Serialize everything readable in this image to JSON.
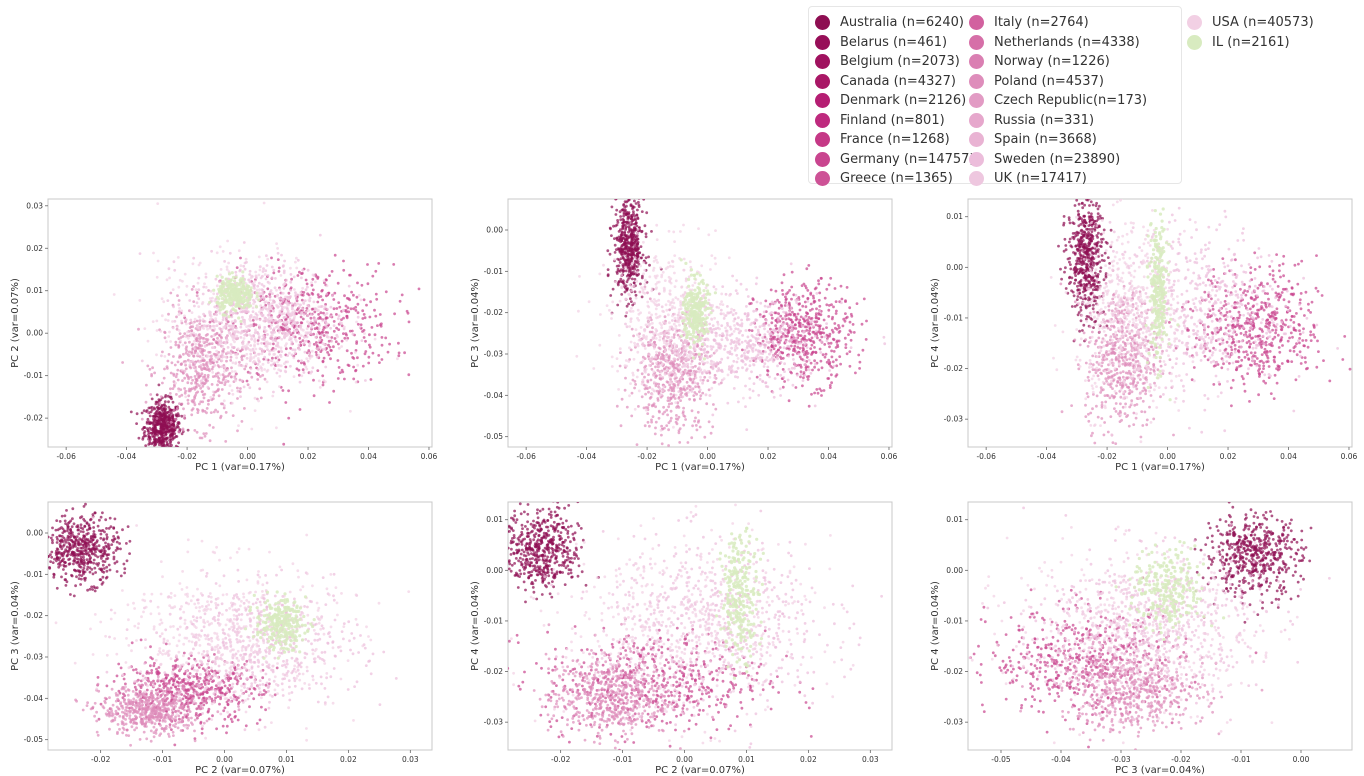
{
  "legend": {
    "items": [
      {
        "label": "Australia (n=6240)",
        "color": "#8e0e52"
      },
      {
        "label": "Belarus (n=461)",
        "color": "#970f58"
      },
      {
        "label": "Belgium (n=2073)",
        "color": "#a0125f"
      },
      {
        "label": "Canada (n=4327)",
        "color": "#a91766"
      },
      {
        "label": "Denmark (n=2126)",
        "color": "#b51e73"
      },
      {
        "label": "Finland (n=801)",
        "color": "#be2a7e"
      },
      {
        "label": "France (n=1268)",
        "color": "#c53886"
      },
      {
        "label": "Germany (n=14757)",
        "color": "#c9458f"
      },
      {
        "label": "Greece (n=1365)",
        "color": "#cd5296"
      },
      {
        "label": "Italy (n=2764)",
        "color": "#d2619f"
      },
      {
        "label": "Netherlands (n=4338)",
        "color": "#d66fa8"
      },
      {
        "label": "Norway (n=1226)",
        "color": "#da7fb2"
      },
      {
        "label": "Poland (n=4537)",
        "color": "#de8dbb"
      },
      {
        "label": "Czech Republic(n=173)",
        "color": "#e29bc4"
      },
      {
        "label": "Russia (n=331)",
        "color": "#e6a7cc"
      },
      {
        "label": "Spain (n=3668)",
        "color": "#e9b3d3"
      },
      {
        "label": "Sweden (n=23890)",
        "color": "#ecbddb"
      },
      {
        "label": "UK (n=17417)",
        "color": "#eec7df"
      },
      {
        "label": "USA (n=40573)",
        "color": "#f2d0e4"
      },
      {
        "label": "IL (n=2161)",
        "color": "#d8ebc0"
      }
    ]
  },
  "chart_data": [
    {
      "type": "scatter",
      "xlabel": "PC 1 (var=0.17%)",
      "ylabel": "PC 2 (var=0.07%)",
      "xlim": [
        -0.066,
        0.061
      ],
      "ylim": [
        -0.0268,
        0.0316
      ],
      "xticks": [
        "-0.06",
        "-0.04",
        "-0.02",
        "0.00",
        "0.02",
        "0.04",
        "0.06"
      ],
      "xtick_values": [
        -0.06,
        -0.04,
        -0.02,
        0.0,
        0.02,
        0.04,
        0.06
      ],
      "yticks": [
        "-0.02",
        "-0.01",
        "0.00",
        "0.01",
        "0.02",
        "0.03"
      ],
      "ytick_values": [
        -0.02,
        -0.01,
        0.0,
        0.01,
        0.02,
        0.03
      ],
      "clusters": [
        {
          "name": "Australia (n=6240)",
          "cx": -0.028,
          "cy": -0.022,
          "sx": 0.003,
          "sy": 0.003
        },
        {
          "name": "Germany (n=14757)",
          "cx": 0.02,
          "cy": 0.002,
          "sx": 0.014,
          "sy": 0.007
        },
        {
          "name": "Poland (n=4537)",
          "cx": -0.015,
          "cy": -0.008,
          "sx": 0.007,
          "sy": 0.007
        },
        {
          "name": "Sweden (n=23890)",
          "cx": 0.005,
          "cy": 0.004,
          "sx": 0.012,
          "sy": 0.007
        },
        {
          "name": "USA (n=40573)",
          "cx": 0.0,
          "cy": 0.002,
          "sx": 0.015,
          "sy": 0.008
        },
        {
          "name": "IL (n=2161)",
          "cx": -0.004,
          "cy": 0.009,
          "sx": 0.003,
          "sy": 0.002
        }
      ]
    },
    {
      "type": "scatter",
      "xlabel": "PC 1 (var=0.17%)",
      "ylabel": "PC 3 (var=0.04%)",
      "xlim": [
        -0.066,
        0.061
      ],
      "ylim": [
        -0.0525,
        0.0075
      ],
      "xticks": [
        "-0.06",
        "-0.04",
        "-0.02",
        "0.00",
        "0.02",
        "0.04",
        "0.06"
      ],
      "xtick_values": [
        -0.06,
        -0.04,
        -0.02,
        0.0,
        0.02,
        0.04,
        0.06
      ],
      "yticks": [
        "-0.05",
        "-0.04",
        "-0.03",
        "-0.02",
        "-0.01",
        "0.00"
      ],
      "ytick_values": [
        -0.05,
        -0.04,
        -0.03,
        -0.02,
        -0.01,
        0.0
      ],
      "clusters": [
        {
          "name": "Australia (n=6240)",
          "cx": -0.026,
          "cy": -0.004,
          "sx": 0.0025,
          "sy": 0.006
        },
        {
          "name": "Germany (n=14757)",
          "cx": 0.032,
          "cy": -0.025,
          "sx": 0.008,
          "sy": 0.006
        },
        {
          "name": "Poland (n=4537)",
          "cx": -0.012,
          "cy": -0.035,
          "sx": 0.007,
          "sy": 0.007
        },
        {
          "name": "Sweden (n=23890)",
          "cx": 0.012,
          "cy": -0.028,
          "sx": 0.013,
          "sy": 0.006
        },
        {
          "name": "USA (n=40573)",
          "cx": -0.012,
          "cy": -0.022,
          "sx": 0.01,
          "sy": 0.009
        },
        {
          "name": "IL (n=2161)",
          "cx": -0.004,
          "cy": -0.02,
          "sx": 0.002,
          "sy": 0.004
        }
      ]
    },
    {
      "type": "scatter",
      "xlabel": "PC 1 (var=0.17%)",
      "ylabel": "PC 4 (var=0.04%)",
      "xlim": [
        -0.066,
        0.061
      ],
      "ylim": [
        -0.0355,
        0.0135
      ],
      "xticks": [
        "-0.06",
        "-0.04",
        "-0.02",
        "0.00",
        "0.02",
        "0.04",
        "0.06"
      ],
      "xtick_values": [
        -0.06,
        -0.04,
        -0.02,
        0.0,
        0.02,
        0.04,
        0.06
      ],
      "yticks": [
        "-0.03",
        "-0.02",
        "-0.01",
        "0.00",
        "0.01"
      ],
      "ytick_values": [
        -0.03,
        -0.02,
        -0.01,
        0.0,
        0.01
      ],
      "clusters": [
        {
          "name": "Australia (n=6240)",
          "cx": -0.027,
          "cy": 0.002,
          "sx": 0.003,
          "sy": 0.006
        },
        {
          "name": "Germany (n=14757)",
          "cx": 0.03,
          "cy": -0.012,
          "sx": 0.01,
          "sy": 0.006
        },
        {
          "name": "Poland (n=4537)",
          "cx": -0.015,
          "cy": -0.018,
          "sx": 0.006,
          "sy": 0.007
        },
        {
          "name": "Sweden (n=23890)",
          "cx": 0.01,
          "cy": -0.008,
          "sx": 0.014,
          "sy": 0.008
        },
        {
          "name": "USA (n=40573)",
          "cx": -0.012,
          "cy": -0.01,
          "sx": 0.009,
          "sy": 0.009
        },
        {
          "name": "IL (n=2161)",
          "cx": -0.003,
          "cy": -0.005,
          "sx": 0.0015,
          "sy": 0.007
        }
      ]
    },
    {
      "type": "scatter",
      "xlabel": "PC 2 (var=0.07%)",
      "ylabel": "PC 3 (var=0.04%)",
      "xlim": [
        -0.0285,
        0.0335
      ],
      "ylim": [
        -0.0525,
        0.0075
      ],
      "xticks": [
        "-0.02",
        "-0.01",
        "0.00",
        "0.01",
        "0.02",
        "0.03"
      ],
      "xtick_values": [
        -0.02,
        -0.01,
        0.0,
        0.01,
        0.02,
        0.03
      ],
      "yticks": [
        "-0.05",
        "-0.04",
        "-0.03",
        "-0.02",
        "-0.01",
        "0.00"
      ],
      "ytick_values": [
        -0.05,
        -0.04,
        -0.03,
        -0.02,
        -0.01,
        0.0
      ],
      "clusters": [
        {
          "name": "Australia (n=6240)",
          "cx": -0.023,
          "cy": -0.004,
          "sx": 0.003,
          "sy": 0.004
        },
        {
          "name": "Germany (n=14757)",
          "cx": -0.006,
          "cy": -0.038,
          "sx": 0.006,
          "sy": 0.004
        },
        {
          "name": "Poland (n=4537)",
          "cx": -0.012,
          "cy": -0.043,
          "sx": 0.004,
          "sy": 0.003
        },
        {
          "name": "Sweden (n=23890)",
          "cx": 0.006,
          "cy": -0.027,
          "sx": 0.008,
          "sy": 0.007
        },
        {
          "name": "USA (n=40573)",
          "cx": 0.0,
          "cy": -0.025,
          "sx": 0.009,
          "sy": 0.009
        },
        {
          "name": "IL (n=2161)",
          "cx": 0.009,
          "cy": -0.022,
          "sx": 0.002,
          "sy": 0.003
        }
      ]
    },
    {
      "type": "scatter",
      "xlabel": "PC 2 (var=0.07%)",
      "ylabel": "PC 4 (var=0.04%)",
      "xlim": [
        -0.0285,
        0.0335
      ],
      "ylim": [
        -0.0355,
        0.0135
      ],
      "xticks": [
        "-0.02",
        "-0.01",
        "0.00",
        "0.01",
        "0.02",
        "0.03"
      ],
      "xtick_values": [
        -0.02,
        -0.01,
        0.0,
        0.01,
        0.02,
        0.03
      ],
      "yticks": [
        "-0.03",
        "-0.02",
        "-0.01",
        "0.00",
        "0.01"
      ],
      "ytick_values": [
        -0.03,
        -0.02,
        -0.01,
        0.0,
        0.01
      ],
      "clusters": [
        {
          "name": "Australia (n=6240)",
          "cx": -0.023,
          "cy": 0.004,
          "sx": 0.003,
          "sy": 0.004
        },
        {
          "name": "Germany (n=14757)",
          "cx": -0.005,
          "cy": -0.022,
          "sx": 0.009,
          "sy": 0.005
        },
        {
          "name": "Poland (n=4537)",
          "cx": -0.012,
          "cy": -0.025,
          "sx": 0.005,
          "sy": 0.004
        },
        {
          "name": "Sweden (n=23890)",
          "cx": 0.005,
          "cy": -0.01,
          "sx": 0.009,
          "sy": 0.008
        },
        {
          "name": "USA (n=40573)",
          "cx": 0.0,
          "cy": -0.012,
          "sx": 0.01,
          "sy": 0.009
        },
        {
          "name": "IL (n=2161)",
          "cx": 0.009,
          "cy": -0.005,
          "sx": 0.0015,
          "sy": 0.006
        }
      ]
    },
    {
      "type": "scatter",
      "xlabel": "PC 3 (var=0.04%)",
      "ylabel": "PC 4 (var=0.04%)",
      "xlim": [
        -0.0555,
        0.0085
      ],
      "ylim": [
        -0.0355,
        0.0135
      ],
      "xticks": [
        "-0.05",
        "-0.04",
        "-0.03",
        "-0.02",
        "-0.01",
        "0.00"
      ],
      "xtick_values": [
        -0.05,
        -0.04,
        -0.03,
        -0.02,
        -0.01,
        0.0
      ],
      "yticks": [
        "-0.03",
        "-0.02",
        "-0.01",
        "0.00",
        "0.01"
      ],
      "ytick_values": [
        -0.03,
        -0.02,
        -0.01,
        0.0,
        0.01
      ],
      "clusters": [
        {
          "name": "Australia (n=6240)",
          "cx": -0.008,
          "cy": 0.003,
          "sx": 0.004,
          "sy": 0.004
        },
        {
          "name": "Germany (n=14757)",
          "cx": -0.036,
          "cy": -0.018,
          "sx": 0.008,
          "sy": 0.005
        },
        {
          "name": "Poland (n=4537)",
          "cx": -0.028,
          "cy": -0.024,
          "sx": 0.006,
          "sy": 0.004
        },
        {
          "name": "Sweden (n=23890)",
          "cx": -0.025,
          "cy": -0.01,
          "sx": 0.009,
          "sy": 0.007
        },
        {
          "name": "USA (n=40573)",
          "cx": -0.028,
          "cy": -0.012,
          "sx": 0.01,
          "sy": 0.008
        },
        {
          "name": "IL (n=2161)",
          "cx": -0.022,
          "cy": -0.004,
          "sx": 0.003,
          "sy": 0.004
        }
      ]
    }
  ]
}
